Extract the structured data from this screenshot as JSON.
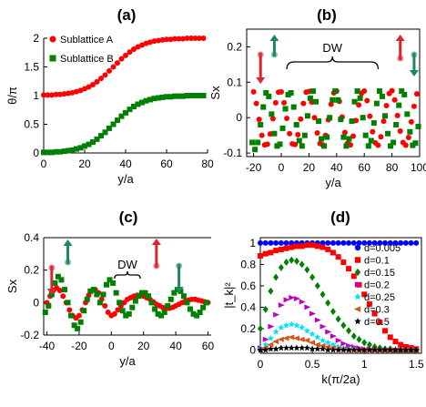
{
  "colors": {
    "red": "#ff0000",
    "green": "#008000",
    "blue": "#0000ff",
    "magenta": "#bf00bf",
    "cyan": "#00e0ff",
    "orange": "#d95319",
    "black": "#000000",
    "arrow_red": "#d9262e",
    "arrow_green": "#1a8a5a"
  },
  "chart_data": [
    {
      "panel": "(a)",
      "type": "scatter",
      "xlabel": "y/a",
      "ylabel": "θ/π",
      "xlim": [
        0,
        80
      ],
      "ylim": [
        0,
        2
      ],
      "xticks": [
        0,
        20,
        40,
        60,
        80
      ],
      "yticks": [
        0,
        0.5,
        1,
        1.5,
        2
      ],
      "grid": false,
      "legend_position": "top-left",
      "series": [
        {
          "name": "Sublattice A",
          "color": "red",
          "marker": "circle",
          "x": [
            0,
            2,
            4,
            6,
            8,
            10,
            12,
            14,
            16,
            18,
            20,
            22,
            24,
            26,
            28,
            30,
            32,
            34,
            36,
            38,
            40,
            42,
            44,
            46,
            48,
            50,
            52,
            54,
            56,
            58,
            60,
            62,
            64,
            66,
            68,
            70,
            72,
            74,
            76,
            78
          ],
          "y": [
            1.01,
            1.01,
            1.01,
            1.02,
            1.02,
            1.03,
            1.04,
            1.05,
            1.07,
            1.09,
            1.12,
            1.15,
            1.19,
            1.24,
            1.3,
            1.36,
            1.43,
            1.5,
            1.57,
            1.64,
            1.7,
            1.76,
            1.81,
            1.85,
            1.88,
            1.91,
            1.93,
            1.95,
            1.96,
            1.97,
            1.98,
            1.98,
            1.99,
            1.99,
            1.99,
            2.0,
            2.0,
            2.0,
            2.0,
            2.0
          ]
        },
        {
          "name": "Sublattice B",
          "color": "green",
          "marker": "square",
          "x": [
            0,
            2,
            4,
            6,
            8,
            10,
            12,
            14,
            16,
            18,
            20,
            22,
            24,
            26,
            28,
            30,
            32,
            34,
            36,
            38,
            40,
            42,
            44,
            46,
            48,
            50,
            52,
            54,
            56,
            58,
            60,
            62,
            64,
            66,
            68,
            70,
            72,
            74,
            76,
            78
          ],
          "y": [
            0.01,
            0.01,
            0.01,
            0.02,
            0.02,
            0.03,
            0.04,
            0.05,
            0.07,
            0.09,
            0.12,
            0.15,
            0.19,
            0.24,
            0.3,
            0.36,
            0.43,
            0.5,
            0.57,
            0.64,
            0.7,
            0.76,
            0.81,
            0.85,
            0.88,
            0.91,
            0.93,
            0.95,
            0.96,
            0.97,
            0.98,
            0.98,
            0.99,
            0.99,
            0.99,
            1.0,
            1.0,
            1.0,
            1.0,
            1.0
          ]
        }
      ]
    },
    {
      "panel": "(b)",
      "type": "scatter",
      "xlabel": "y/a",
      "ylabel": "Sx",
      "annotation": "DW",
      "xlim": [
        -25,
        100
      ],
      "ylim": [
        -0.11,
        0.25
      ],
      "xticks": [
        -20,
        0,
        20,
        40,
        60,
        80,
        100
      ],
      "yticks": [
        -0.1,
        0,
        0.1,
        0.2
      ],
      "grid": false,
      "series": [
        {
          "name": "Sublattice A",
          "color": "red",
          "marker": "circle",
          "x": [
            -20,
            -18,
            -16,
            -14,
            -12,
            -10,
            -8,
            -6,
            -4,
            -2,
            0,
            2,
            4,
            6,
            8,
            10,
            12,
            14,
            16,
            18,
            20,
            22,
            24,
            26,
            28,
            30,
            32,
            34,
            36,
            38,
            40,
            42,
            44,
            46,
            48,
            50,
            52,
            54,
            56,
            58,
            60,
            62,
            64,
            66,
            68,
            70,
            72,
            74,
            76,
            78,
            80,
            82,
            84,
            86,
            88,
            90,
            92,
            94,
            96,
            98
          ],
          "y": [
            0.073,
            0.04,
            -0.005,
            -0.05,
            -0.077,
            -0.075,
            -0.046,
            -0.003,
            0.042,
            0.072,
            0.073,
            0.042,
            -0.002,
            -0.045,
            -0.074,
            -0.076,
            -0.048,
            -0.004,
            0.04,
            0.072,
            0.074,
            0.044,
            0.0,
            -0.043,
            -0.073,
            -0.077,
            -0.05,
            -0.006,
            0.038,
            0.07,
            0.075,
            0.046,
            0.002,
            -0.042,
            -0.072,
            -0.077,
            -0.052,
            -0.008,
            0.036,
            0.069,
            0.075,
            0.048,
            0.004,
            -0.04,
            -0.071,
            -0.078,
            -0.054,
            -0.01,
            0.034,
            0.068,
            0.076,
            0.05,
            0.006,
            -0.038,
            -0.07,
            -0.078,
            -0.056,
            -0.012,
            0.032,
            0.067
          ]
        },
        {
          "name": "Sublattice B",
          "color": "green",
          "marker": "square",
          "x": [
            -21,
            -19,
            -17,
            -15,
            -13,
            -11,
            -9,
            -7,
            -5,
            -3,
            -1,
            1,
            3,
            5,
            7,
            9,
            11,
            13,
            15,
            17,
            19,
            21,
            23,
            25,
            27,
            29,
            31,
            33,
            35,
            37,
            39,
            41,
            43,
            45,
            47,
            49,
            51,
            53,
            55,
            57,
            59,
            61,
            63,
            65,
            67,
            69,
            71,
            73,
            75,
            77,
            79,
            81,
            83,
            85,
            87,
            89,
            91,
            93,
            95,
            97,
            99
          ],
          "y": [
            -0.07,
            -0.09,
            -0.07,
            -0.02,
            0.03,
            0.07,
            0.06,
            0.01,
            -0.045,
            -0.08,
            -0.075,
            -0.03,
            0.025,
            0.065,
            0.07,
            0.03,
            -0.02,
            -0.065,
            -0.08,
            -0.05,
            0.005,
            0.055,
            0.075,
            0.045,
            -0.01,
            -0.06,
            -0.08,
            -0.055,
            0.0,
            0.05,
            0.075,
            0.05,
            -0.005,
            -0.055,
            -0.08,
            -0.06,
            -0.01,
            0.045,
            0.075,
            0.055,
            0.0,
            -0.05,
            -0.08,
            -0.065,
            -0.015,
            0.04,
            0.075,
            0.06,
            0.005,
            -0.045,
            -0.08,
            -0.07,
            -0.02,
            0.035,
            0.075,
            0.065,
            0.01,
            -0.04,
            -0.078,
            -0.072,
            -0.025
          ]
        }
      ]
    },
    {
      "panel": "(c)",
      "type": "scatter",
      "xlabel": "y/a",
      "ylabel": "Sx",
      "annotation": "DW",
      "xlim": [
        -42,
        62
      ],
      "ylim": [
        -0.2,
        0.4
      ],
      "xticks": [
        -40,
        -20,
        0,
        20,
        40,
        60
      ],
      "yticks": [
        -0.2,
        0,
        0.2,
        0.4
      ],
      "grid": false,
      "series": [
        {
          "name": "Sublattice A",
          "color": "red",
          "marker": "circle",
          "x": [
            -40,
            -38,
            -36,
            -34,
            -32,
            -30,
            -28,
            -26,
            -24,
            -22,
            -20,
            -18,
            -16,
            -14,
            -12,
            -10,
            -8,
            -6,
            -4,
            -2,
            0,
            2,
            4,
            6,
            8,
            10,
            12,
            14,
            16,
            18,
            20,
            22,
            24,
            26,
            28,
            30,
            32,
            34,
            36,
            38,
            40,
            42,
            44,
            46,
            48,
            50,
            52,
            54,
            56,
            58,
            60
          ],
          "y": [
            0.0,
            0.04,
            0.075,
            0.09,
            0.075,
            0.04,
            0.0,
            -0.045,
            -0.08,
            -0.095,
            -0.08,
            -0.045,
            0.0,
            0.045,
            0.075,
            0.08,
            0.06,
            0.02,
            -0.02,
            -0.06,
            -0.08,
            -0.07,
            -0.045,
            -0.02,
            0.0,
            0.02,
            0.03,
            0.04,
            0.045,
            0.045,
            0.04,
            0.03,
            0.02,
            0.005,
            -0.01,
            -0.02,
            -0.03,
            -0.035,
            -0.035,
            -0.03,
            -0.02,
            -0.01,
            0.0,
            0.01,
            0.015,
            0.02,
            0.02,
            0.015,
            0.01,
            0.005,
            0.0
          ]
        },
        {
          "name": "Sublattice B",
          "color": "green",
          "marker": "square",
          "x": [
            -41,
            -39,
            -37,
            -35,
            -33,
            -31,
            -29,
            -27,
            -25,
            -23,
            -21,
            -19,
            -17,
            -15,
            -13,
            -11,
            -9,
            -7,
            -5,
            -3,
            -1,
            1,
            3,
            5,
            7,
            9,
            11,
            13,
            15,
            17,
            19,
            21,
            23,
            25,
            27,
            29,
            31,
            33,
            35,
            37,
            39,
            41,
            43,
            45,
            47,
            49,
            51,
            53,
            55,
            57,
            59
          ],
          "y": [
            -0.06,
            -0.02,
            0.05,
            0.12,
            0.16,
            0.14,
            0.08,
            0.0,
            -0.08,
            -0.14,
            -0.16,
            -0.12,
            -0.05,
            0.02,
            0.07,
            0.08,
            0.05,
            0.0,
            0.05,
            0.11,
            0.14,
            0.12,
            0.06,
            0.0,
            -0.05,
            -0.08,
            -0.07,
            -0.03,
            0.01,
            0.04,
            0.06,
            0.06,
            0.04,
            0.0,
            -0.04,
            -0.07,
            -0.08,
            -0.06,
            -0.02,
            0.02,
            0.06,
            0.08,
            0.07,
            0.04,
            0.0,
            -0.04,
            -0.07,
            -0.08,
            -0.06,
            -0.03,
            0.0
          ]
        }
      ]
    },
    {
      "panel": "(d)",
      "type": "scatter",
      "xlabel": "k(π/2a)",
      "ylabel": "|t_k|²",
      "xlim": [
        0,
        1.55
      ],
      "ylim": [
        -0.03,
        1.05
      ],
      "xticks": [
        0,
        0.5,
        1,
        1.5
      ],
      "yticks": [
        0,
        0.2,
        0.4,
        0.6,
        0.8,
        1
      ],
      "grid": false,
      "legend_position": "right",
      "x": [
        0,
        0.05,
        0.1,
        0.15,
        0.2,
        0.25,
        0.3,
        0.35,
        0.4,
        0.45,
        0.5,
        0.55,
        0.6,
        0.65,
        0.7,
        0.75,
        0.8,
        0.85,
        0.9,
        0.95,
        1.0,
        1.05,
        1.1,
        1.15,
        1.2,
        1.25,
        1.3,
        1.35,
        1.4,
        1.45,
        1.5
      ],
      "series": [
        {
          "name": "d=0.005",
          "color": "blue",
          "marker": "circle",
          "values": [
            1,
            1,
            1,
            1,
            1,
            1,
            1,
            1,
            1,
            1,
            1,
            1,
            1,
            1,
            1,
            1,
            1,
            1,
            1,
            1,
            1,
            1,
            1,
            1,
            1,
            1,
            1,
            1,
            1,
            1,
            1
          ]
        },
        {
          "name": "d=0.1",
          "color": "red",
          "marker": "square",
          "values": [
            0.88,
            0.9,
            0.91,
            0.93,
            0.94,
            0.95,
            0.96,
            0.97,
            0.97,
            0.98,
            0.98,
            0.97,
            0.96,
            0.94,
            0.91,
            0.87,
            0.82,
            0.76,
            0.69,
            0.61,
            0.52,
            0.43,
            0.34,
            0.26,
            0.18,
            0.12,
            0.08,
            0.05,
            0.03,
            0.02,
            0.01
          ]
        },
        {
          "name": "d=0.15",
          "color": "green",
          "marker": "diamond",
          "values": [
            0.2,
            0.38,
            0.55,
            0.68,
            0.77,
            0.82,
            0.84,
            0.83,
            0.8,
            0.75,
            0.68,
            0.6,
            0.52,
            0.44,
            0.36,
            0.29,
            0.23,
            0.18,
            0.13,
            0.1,
            0.07,
            0.05,
            0.03,
            0.02,
            0.01,
            0.01,
            0.0,
            0.0,
            0.0,
            0.0,
            0.0
          ]
        },
        {
          "name": "d=0.2",
          "color": "magenta",
          "marker": "triangle-right",
          "values": [
            0.02,
            0.1,
            0.22,
            0.33,
            0.42,
            0.47,
            0.49,
            0.48,
            0.45,
            0.4,
            0.34,
            0.28,
            0.22,
            0.17,
            0.13,
            0.09,
            0.06,
            0.04,
            0.03,
            0.02,
            0.01,
            0.01,
            0.0,
            0.0,
            0.0,
            0.0,
            0.0,
            0.0,
            0.0,
            0.0,
            0.0
          ]
        },
        {
          "name": "d=0.25",
          "color": "cyan",
          "marker": "star",
          "values": [
            0.01,
            0.05,
            0.11,
            0.17,
            0.21,
            0.23,
            0.24,
            0.23,
            0.21,
            0.18,
            0.15,
            0.12,
            0.09,
            0.07,
            0.05,
            0.03,
            0.02,
            0.01,
            0.01,
            0.0,
            0.0,
            0.0,
            0.0,
            0.0,
            0.0,
            0.0,
            0.0,
            0.0,
            0.0,
            0.0,
            0.0
          ]
        },
        {
          "name": "d=0.3",
          "color": "orange",
          "marker": "triangle-left",
          "values": [
            0.0,
            0.02,
            0.05,
            0.08,
            0.1,
            0.11,
            0.12,
            0.11,
            0.1,
            0.09,
            0.07,
            0.05,
            0.04,
            0.03,
            0.02,
            0.01,
            0.01,
            0.0,
            0.0,
            0.0,
            0.0,
            0.0,
            0.0,
            0.0,
            0.0,
            0.0,
            0.0,
            0.0,
            0.0,
            0.0,
            0.0
          ]
        },
        {
          "name": "d=0.5",
          "color": "black",
          "marker": "star",
          "values": [
            0.0,
            0.0,
            0.01,
            0.01,
            0.02,
            0.02,
            0.02,
            0.02,
            0.02,
            0.02,
            0.01,
            0.01,
            0.01,
            0.0,
            0.0,
            0.0,
            0.0,
            0.0,
            0.0,
            0.0,
            0.0,
            0.0,
            0.0,
            0.0,
            0.0,
            0.0,
            0.0,
            0.0,
            0.0,
            0.0,
            0.0
          ]
        }
      ]
    }
  ]
}
